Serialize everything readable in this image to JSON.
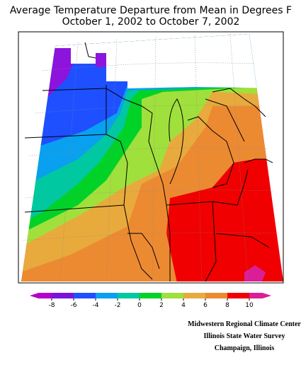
{
  "header": {
    "title": [
      "Average Temperature Departure from Mean in Degrees F",
      "October 1, 2002 to October 7, 2002"
    ]
  },
  "legend": {
    "ticks": [
      -8,
      -6,
      -4,
      -2,
      0,
      2,
      4,
      6,
      8,
      10
    ],
    "colors": [
      "#b400c8",
      "#7814dc",
      "#1e50ff",
      "#0aa0f0",
      "#00c8a0",
      "#00d228",
      "#a0e03c",
      "#e8aa3c",
      "#ec8a32",
      "#f00000",
      "#dc1e96"
    ]
  },
  "credits": [
    "Midwestern Regional Climate Center",
    "Illinois State Water Survey",
    "Champaign, Illinois"
  ]
}
